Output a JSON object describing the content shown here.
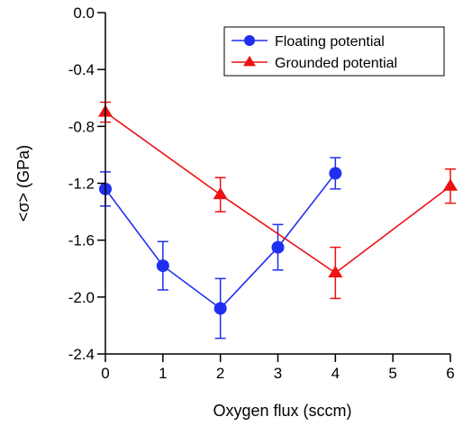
{
  "chart_data": {
    "type": "line",
    "xlabel": "Oxygen flux (sccm)",
    "ylabel": "<σ> (GPa)",
    "x_ticks": [
      {
        "pos": 0,
        "label": "0"
      },
      {
        "pos": 1,
        "label": "1"
      },
      {
        "pos": 2,
        "label": "2"
      },
      {
        "pos": 3,
        "label": "3"
      },
      {
        "pos": 4,
        "label": "4"
      },
      {
        "pos": 5,
        "label": "5"
      },
      {
        "pos": 6,
        "label": "6"
      }
    ],
    "y_ticks": [
      {
        "value": 0.0,
        "label": "0.0"
      },
      {
        "value": -0.4,
        "label": "-0.4"
      },
      {
        "value": -0.8,
        "label": "-0.8"
      },
      {
        "value": -1.2,
        "label": "-1.2"
      },
      {
        "value": -1.6,
        "label": "-1.6"
      },
      {
        "value": -2.0,
        "label": "-2.0"
      },
      {
        "value": -2.4,
        "label": "-2.4"
      }
    ],
    "ylim": [
      -2.4,
      0.0
    ],
    "x_axis_positions": [
      0,
      6
    ],
    "grid": false,
    "legend_position": "top-right",
    "series": [
      {
        "name": "Floating potential",
        "color": "#1f2ff0",
        "marker": "circle",
        "x": [
          0,
          1,
          2,
          3,
          4
        ],
        "x_pos": [
          0,
          1,
          2,
          3,
          4
        ],
        "y": [
          -1.24,
          -1.78,
          -2.08,
          -1.65,
          -1.13
        ],
        "err": [
          0.12,
          0.17,
          0.21,
          0.16,
          0.11
        ]
      },
      {
        "name": "Grounded potential",
        "color": "#ee1111",
        "marker": "triangle",
        "x": [
          0,
          2,
          4,
          6
        ],
        "x_pos": [
          0,
          2,
          4,
          6
        ],
        "y": [
          -0.7,
          -1.28,
          -1.83,
          -1.22
        ],
        "err": [
          0.07,
          0.12,
          0.18,
          0.12
        ]
      }
    ]
  }
}
